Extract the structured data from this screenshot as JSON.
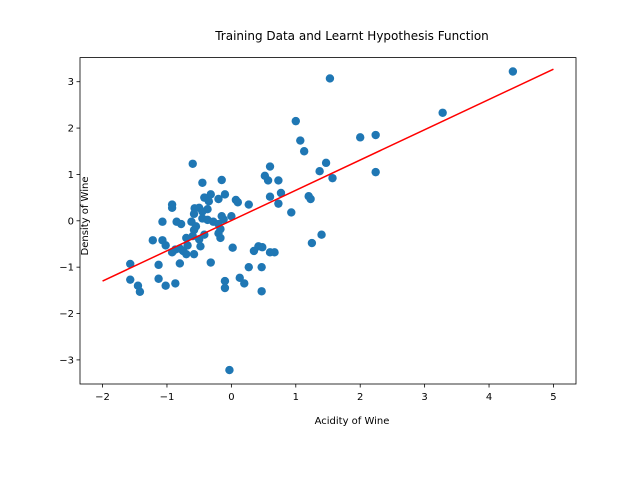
{
  "chart_data": {
    "type": "scatter",
    "title": "Training Data and Learnt Hypothesis Function",
    "xlabel": "Acidity of Wine",
    "ylabel": "Density of Wine",
    "xlim": [
      -2.35,
      5.35
    ],
    "ylim": [
      -3.52,
      3.52
    ],
    "xticks": [
      -2,
      -1,
      0,
      1,
      2,
      3,
      4,
      5
    ],
    "yticks": [
      -3,
      -2,
      -1,
      0,
      1,
      2,
      3
    ],
    "grid": false,
    "colors": {
      "points": "#1f77b4",
      "line": "#ff0000"
    },
    "series": [
      {
        "type": "scatter",
        "points": [
          [
            4.37,
            3.22
          ],
          [
            1.53,
            3.07
          ],
          [
            3.28,
            2.33
          ],
          [
            1.0,
            2.15
          ],
          [
            2.24,
            1.85
          ],
          [
            2.0,
            1.8
          ],
          [
            1.07,
            1.73
          ],
          [
            1.13,
            1.5
          ],
          [
            1.47,
            1.25
          ],
          [
            0.6,
            1.17
          ],
          [
            -0.6,
            1.23
          ],
          [
            1.37,
            1.07
          ],
          [
            2.24,
            1.05
          ],
          [
            0.52,
            0.97
          ],
          [
            -0.15,
            0.88
          ],
          [
            0.57,
            0.87
          ],
          [
            0.73,
            0.87
          ],
          [
            1.57,
            0.92
          ],
          [
            -0.45,
            0.82
          ],
          [
            0.77,
            0.6
          ],
          [
            0.6,
            0.52
          ],
          [
            1.2,
            0.53
          ],
          [
            1.23,
            0.47
          ],
          [
            -0.32,
            0.57
          ],
          [
            -0.1,
            0.57
          ],
          [
            -0.42,
            0.5
          ],
          [
            -0.2,
            0.47
          ],
          [
            0.07,
            0.45
          ],
          [
            -0.35,
            0.42
          ],
          [
            0.1,
            0.4
          ],
          [
            0.73,
            0.37
          ],
          [
            0.27,
            0.35
          ],
          [
            -0.92,
            0.35
          ],
          [
            -0.57,
            0.27
          ],
          [
            -0.5,
            0.28
          ],
          [
            -0.37,
            0.25
          ],
          [
            -0.92,
            0.28
          ],
          [
            0.93,
            0.18
          ],
          [
            -0.45,
            0.2
          ],
          [
            -0.58,
            0.15
          ],
          [
            -0.15,
            0.1
          ],
          [
            0.0,
            0.1
          ],
          [
            -0.45,
            0.05
          ],
          [
            -0.12,
            0.03
          ],
          [
            -0.37,
            0.02
          ],
          [
            -0.28,
            -0.02
          ],
          [
            -1.07,
            -0.02
          ],
          [
            -0.85,
            -0.02
          ],
          [
            -0.62,
            -0.02
          ],
          [
            -0.78,
            -0.07
          ],
          [
            -0.2,
            -0.07
          ],
          [
            -0.55,
            -0.12
          ],
          [
            -0.17,
            -0.18
          ],
          [
            -0.58,
            -0.2
          ],
          [
            -0.2,
            -0.27
          ],
          [
            -0.42,
            -0.3
          ],
          [
            -0.6,
            -0.33
          ],
          [
            -0.7,
            -0.37
          ],
          [
            -0.17,
            -0.37
          ],
          [
            -0.5,
            -0.4
          ],
          [
            -1.22,
            -0.42
          ],
          [
            -1.07,
            -0.42
          ],
          [
            1.4,
            -0.3
          ],
          [
            1.25,
            -0.48
          ],
          [
            -1.02,
            -0.53
          ],
          [
            -0.48,
            -0.55
          ],
          [
            -0.68,
            -0.53
          ],
          [
            -0.8,
            -0.6
          ],
          [
            0.02,
            -0.58
          ],
          [
            -0.87,
            -0.62
          ],
          [
            -0.75,
            -0.65
          ],
          [
            0.42,
            -0.55
          ],
          [
            0.48,
            -0.57
          ],
          [
            -0.92,
            -0.68
          ],
          [
            0.35,
            -0.65
          ],
          [
            0.6,
            -0.68
          ],
          [
            0.67,
            -0.68
          ],
          [
            -0.58,
            -0.72
          ],
          [
            -0.7,
            -0.72
          ],
          [
            -1.57,
            -0.93
          ],
          [
            -1.13,
            -0.95
          ],
          [
            -0.8,
            -0.92
          ],
          [
            -0.32,
            -0.9
          ],
          [
            0.27,
            -1.0
          ],
          [
            0.47,
            -1.0
          ],
          [
            0.13,
            -1.23
          ],
          [
            -1.13,
            -1.25
          ],
          [
            -1.57,
            -1.27
          ],
          [
            -0.1,
            -1.3
          ],
          [
            0.2,
            -1.35
          ],
          [
            -1.45,
            -1.4
          ],
          [
            -1.02,
            -1.4
          ],
          [
            -0.87,
            -1.35
          ],
          [
            -0.1,
            -1.45
          ],
          [
            0.47,
            -1.52
          ],
          [
            -1.42,
            -1.53
          ],
          [
            -0.03,
            -3.22
          ]
        ]
      },
      {
        "type": "line",
        "points": [
          [
            -2,
            -1.3
          ],
          [
            5,
            3.27
          ]
        ]
      }
    ]
  }
}
